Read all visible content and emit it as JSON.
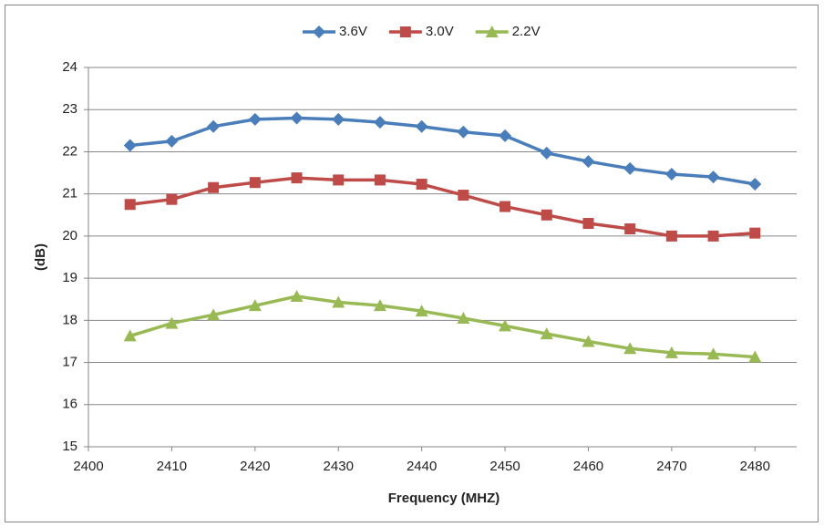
{
  "chart_data": {
    "type": "line",
    "x_label": "Frequency (MHZ)",
    "y_label": "(dB)",
    "x": [
      2405,
      2410,
      2415,
      2420,
      2425,
      2430,
      2435,
      2440,
      2445,
      2450,
      2455,
      2460,
      2465,
      2470,
      2475,
      2480
    ],
    "series": [
      {
        "name": "3.6V",
        "color": "#4a7ebb",
        "marker": "diamond",
        "values": [
          22.15,
          22.25,
          22.6,
          22.77,
          22.8,
          22.77,
          22.7,
          22.6,
          22.47,
          22.38,
          21.97,
          21.77,
          21.6,
          21.47,
          21.4,
          21.23
        ]
      },
      {
        "name": "3.0V",
        "color": "#be4b48",
        "marker": "square",
        "values": [
          20.75,
          20.87,
          21.15,
          21.27,
          21.38,
          21.33,
          21.33,
          21.23,
          20.97,
          20.7,
          20.5,
          20.3,
          20.17,
          20.0,
          20.0,
          20.07
        ]
      },
      {
        "name": "2.2V",
        "color": "#98b954",
        "marker": "triangle",
        "values": [
          17.63,
          17.93,
          18.13,
          18.35,
          18.57,
          18.43,
          18.35,
          18.22,
          18.05,
          17.87,
          17.68,
          17.5,
          17.33,
          17.23,
          17.2,
          17.13
        ]
      }
    ],
    "xlim": [
      2400,
      2485
    ],
    "xticks": [
      2400,
      2410,
      2420,
      2430,
      2440,
      2450,
      2460,
      2470,
      2480
    ],
    "ylim": [
      15,
      24
    ],
    "yticks": [
      15,
      16,
      17,
      18,
      19,
      20,
      21,
      22,
      23,
      24
    ],
    "grid": true,
    "legend": "top"
  }
}
